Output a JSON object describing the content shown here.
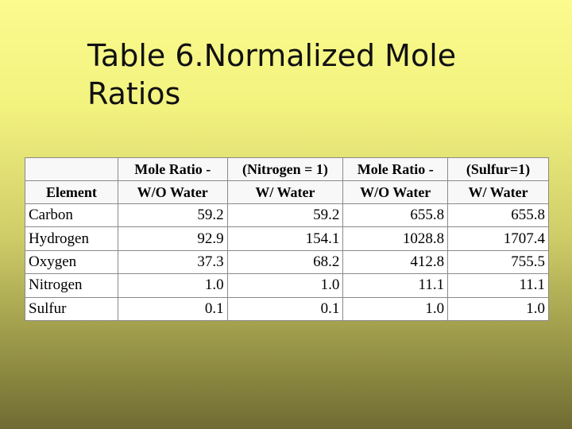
{
  "slide": {
    "title_line1": "Table 6.Normalized Mole",
    "title_line2": "Ratios"
  },
  "table": {
    "header_top": [
      "",
      "Mole Ratio -",
      "(Nitrogen = 1)",
      "Mole Ratio -",
      "(Sulfur=1)"
    ],
    "header_bottom": [
      "Element",
      "W/O Water",
      "W/ Water",
      "W/O Water",
      "W/ Water"
    ],
    "rows": [
      [
        "Carbon",
        "59.2",
        "59.2",
        "655.8",
        "655.8"
      ],
      [
        "Hydrogen",
        "92.9",
        "154.1",
        "1028.8",
        "1707.4"
      ],
      [
        "Oxygen",
        "37.3",
        "68.2",
        "412.8",
        "755.5"
      ],
      [
        "Nitrogen",
        "1.0",
        "1.0",
        "11.1",
        "11.1"
      ],
      [
        "Sulfur",
        "0.1",
        "0.1",
        "1.0",
        "1.0"
      ]
    ]
  }
}
